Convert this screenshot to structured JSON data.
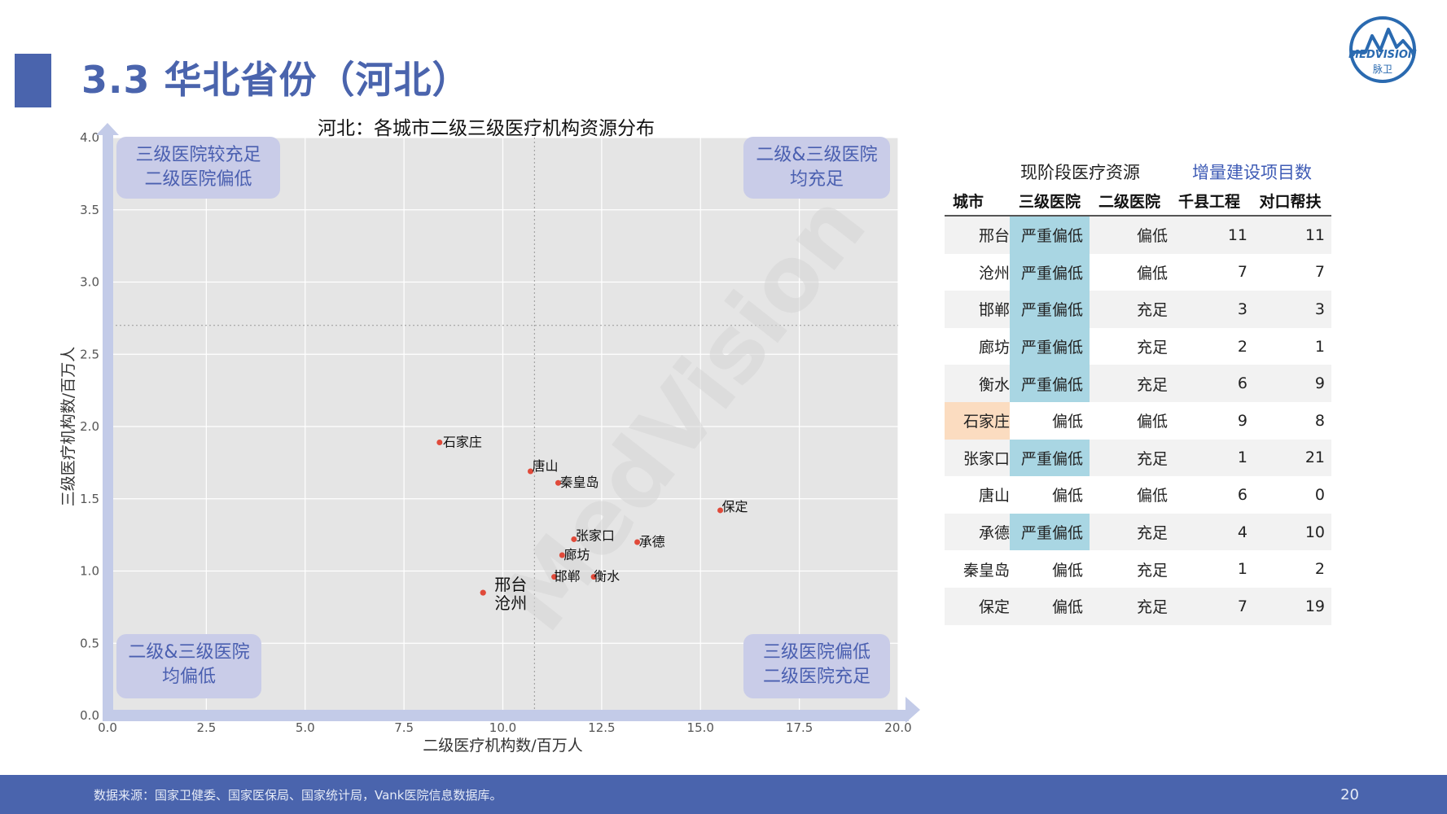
{
  "page": {
    "title": "3.3 华北省份（河北）",
    "logo_text": "MEDVISION",
    "logo_sub": "脉卫",
    "watermark": "MedVision",
    "footer_source": "数据来源：国家卫健委、国家医保局、国家统计局，Vank医院信息数据库。",
    "page_number": "20"
  },
  "colors": {
    "brand": "#4a64ad",
    "plot_bg": "#e5e5e5",
    "quadrant_box": "#c9cce8",
    "quadrant_text": "#4a5fb0",
    "axis_arrow": "#c3cbe8",
    "point": "#e04a3a",
    "highlight_blue": "#a9d6e3",
    "highlight_orange": "#fbdcc0"
  },
  "chart_data": {
    "type": "scatter",
    "title": "河北：各城市二级三级医疗机构资源分布",
    "xlabel": "二级医疗机构数/百万人",
    "ylabel": "三级医疗机构数/百万人",
    "xlim": [
      0,
      20
    ],
    "ylim": [
      0,
      4
    ],
    "xticks": [
      "0.0",
      "2.5",
      "5.0",
      "7.5",
      "10.0",
      "12.5",
      "15.0",
      "17.5",
      "20.0"
    ],
    "yticks": [
      "0.0",
      "0.5",
      "1.0",
      "1.5",
      "2.0",
      "2.5",
      "3.0",
      "3.5",
      "4.0"
    ],
    "x_reference": 10.8,
    "y_reference": 2.7,
    "grid": true,
    "points": [
      {
        "label": "石家庄",
        "x": 8.4,
        "y": 1.89
      },
      {
        "label": "唐山",
        "x": 10.7,
        "y": 1.69
      },
      {
        "label": "秦皇岛",
        "x": 11.4,
        "y": 1.61
      },
      {
        "label": "保定",
        "x": 15.5,
        "y": 1.42
      },
      {
        "label": "张家口",
        "x": 11.8,
        "y": 1.22
      },
      {
        "label": "承德",
        "x": 13.4,
        "y": 1.2
      },
      {
        "label": "廊坊",
        "x": 11.5,
        "y": 1.11
      },
      {
        "label": "邯郸",
        "x": 11.3,
        "y": 0.96
      },
      {
        "label": "衡水",
        "x": 12.3,
        "y": 0.96
      },
      {
        "label": "邢台",
        "x": 9.5,
        "y": 0.85
      },
      {
        "label": "沧州",
        "x": 9.5,
        "y": 0.85
      }
    ],
    "quadrants": {
      "top_left": [
        "三级医院较充足",
        "二级医院偏低"
      ],
      "top_right": [
        "二级&三级医院",
        "均充足"
      ],
      "bottom_left": [
        "二级&三级医院",
        "均偏低"
      ],
      "bottom_right": [
        "三级医院偏低",
        "二级医院充足"
      ]
    }
  },
  "table": {
    "super_header_current": "现阶段医疗资源",
    "super_header_projects": "增量建设项目数",
    "headers": [
      "城市",
      "三级医院",
      "二级医院",
      "千县工程",
      "对口帮扶"
    ],
    "rows": [
      {
        "city": "邢台",
        "tier3": "严重偏低",
        "tier2": "偏低",
        "qianxian": "11",
        "duikou": "11",
        "hl": "blue",
        "city_hl": ""
      },
      {
        "city": "沧州",
        "tier3": "严重偏低",
        "tier2": "偏低",
        "qianxian": "7",
        "duikou": "7",
        "hl": "blue",
        "city_hl": ""
      },
      {
        "city": "邯郸",
        "tier3": "严重偏低",
        "tier2": "充足",
        "qianxian": "3",
        "duikou": "3",
        "hl": "blue",
        "city_hl": ""
      },
      {
        "city": "廊坊",
        "tier3": "严重偏低",
        "tier2": "充足",
        "qianxian": "2",
        "duikou": "1",
        "hl": "blue",
        "city_hl": ""
      },
      {
        "city": "衡水",
        "tier3": "严重偏低",
        "tier2": "充足",
        "qianxian": "6",
        "duikou": "9",
        "hl": "blue",
        "city_hl": ""
      },
      {
        "city": "石家庄",
        "tier3": "偏低",
        "tier2": "偏低",
        "qianxian": "9",
        "duikou": "8",
        "hl": "",
        "city_hl": "orange"
      },
      {
        "city": "张家口",
        "tier3": "严重偏低",
        "tier2": "充足",
        "qianxian": "1",
        "duikou": "21",
        "hl": "blue",
        "city_hl": ""
      },
      {
        "city": "唐山",
        "tier3": "偏低",
        "tier2": "偏低",
        "qianxian": "6",
        "duikou": "0",
        "hl": "",
        "city_hl": ""
      },
      {
        "city": "承德",
        "tier3": "严重偏低",
        "tier2": "充足",
        "qianxian": "4",
        "duikou": "10",
        "hl": "blue",
        "city_hl": ""
      },
      {
        "city": "秦皇岛",
        "tier3": "偏低",
        "tier2": "充足",
        "qianxian": "1",
        "duikou": "2",
        "hl": "",
        "city_hl": ""
      },
      {
        "city": "保定",
        "tier3": "偏低",
        "tier2": "充足",
        "qianxian": "7",
        "duikou": "19",
        "hl": "",
        "city_hl": ""
      }
    ]
  }
}
